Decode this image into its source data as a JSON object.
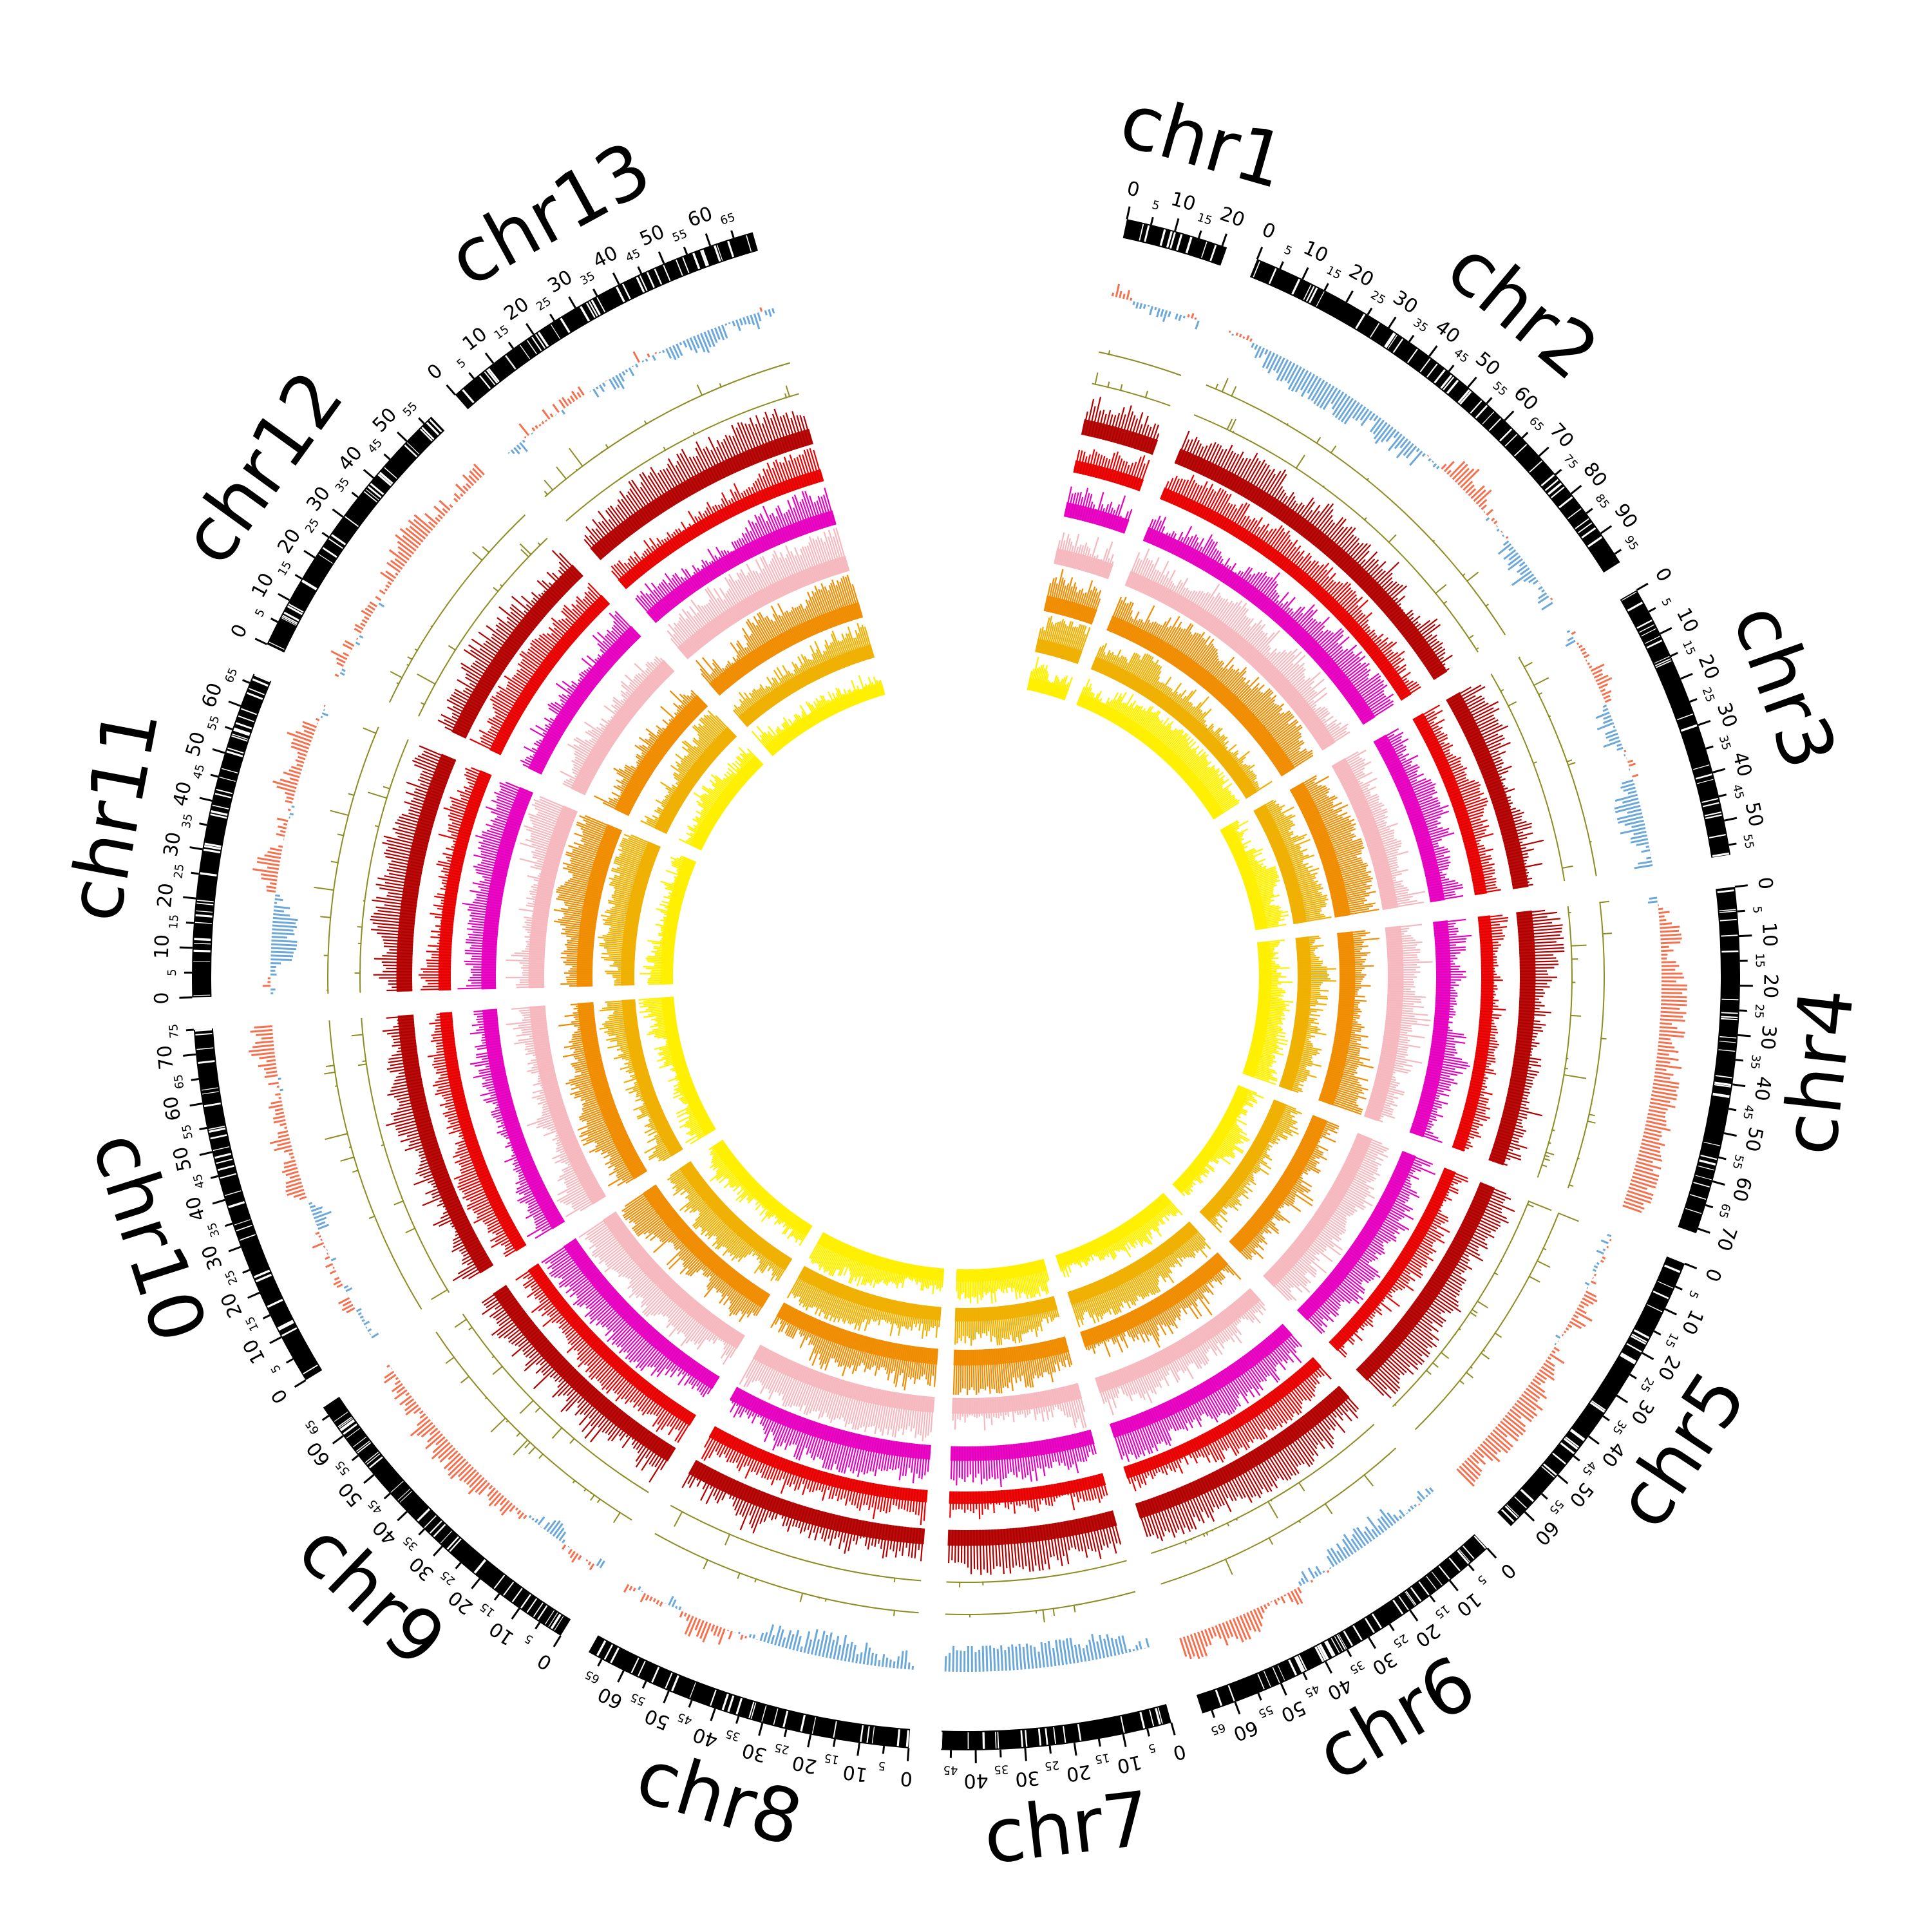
{
  "chart_data": {
    "type": "circos",
    "title": "",
    "chromosomes": [
      {
        "name": "chr1",
        "length": 21,
        "label": "chr1"
      },
      {
        "name": "chr2",
        "length": 97,
        "label": "chr2"
      },
      {
        "name": "chr3",
        "length": 57,
        "label": "chr3"
      },
      {
        "name": "chr4",
        "length": 71,
        "label": "chr4"
      },
      {
        "name": "chr5",
        "length": 64,
        "label": "chr5"
      },
      {
        "name": "chr6",
        "length": 67,
        "label": "chr6"
      },
      {
        "name": "chr7",
        "length": 47,
        "label": "chr7"
      },
      {
        "name": "chr8",
        "length": 68,
        "label": "chr8"
      },
      {
        "name": "chr9",
        "length": 67,
        "label": "chr9"
      },
      {
        "name": "chr10",
        "length": 75,
        "label": "chr10"
      },
      {
        "name": "chr11",
        "length": 67,
        "label": "chr11"
      },
      {
        "name": "chr12",
        "length": 57,
        "label": "chr12"
      },
      {
        "name": "chr13",
        "length": 69,
        "label": "chr13"
      }
    ],
    "ticks": {
      "major_step": 10,
      "minor_step": 5
    },
    "tracks": [
      {
        "kind": "ideogram",
        "color": "#000000"
      },
      {
        "kind": "diverging",
        "pos_color": "#F4714F",
        "neg_color": "#6BA8D8"
      },
      {
        "kind": "sparse",
        "color": "#8C8C22"
      },
      {
        "kind": "sparse",
        "color": "#8C8C22"
      },
      {
        "kind": "bar",
        "color": "#B20000"
      },
      {
        "kind": "bar",
        "color": "#E80000"
      },
      {
        "kind": "bar",
        "color": "#E600C0"
      },
      {
        "kind": "bar",
        "color": "#F5B8BE"
      },
      {
        "kind": "bar",
        "color": "#F08C00"
      },
      {
        "kind": "bar",
        "color": "#F0B000"
      },
      {
        "kind": "bar",
        "color": "#FFF000"
      }
    ]
  }
}
